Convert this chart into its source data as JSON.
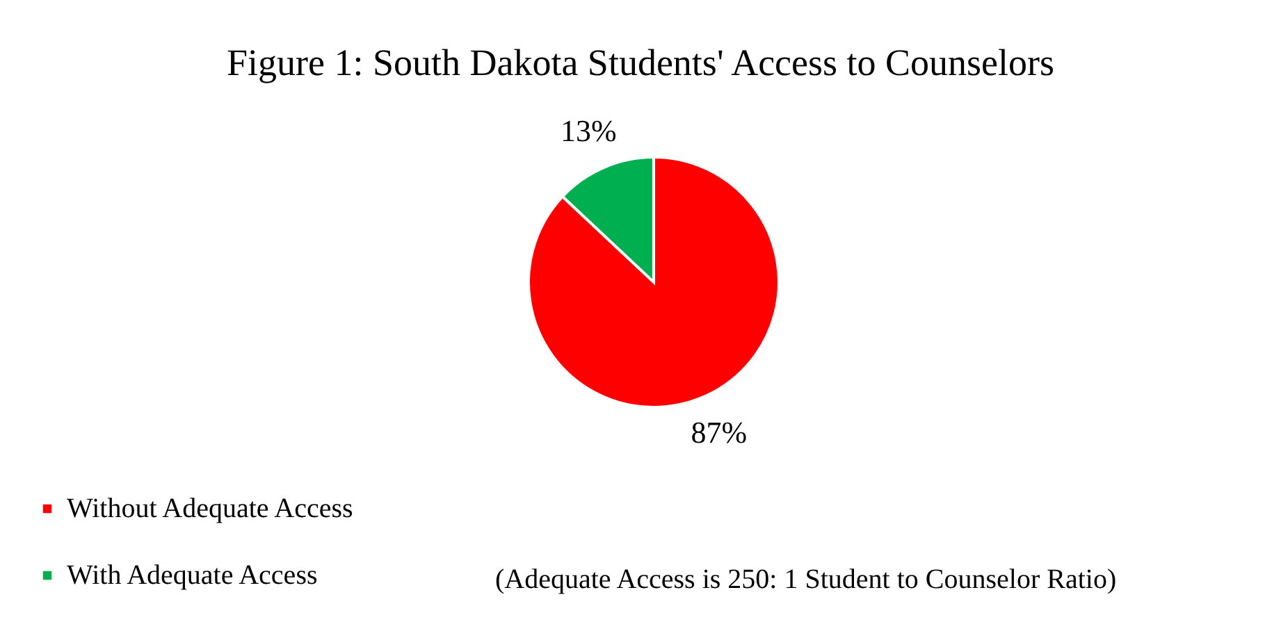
{
  "chart_data": {
    "type": "pie",
    "title": "Figure 1: South Dakota Students' Access to Counselors",
    "categories": [
      "Without Adequate Access",
      "With Adequate Access"
    ],
    "values": [
      87,
      13
    ],
    "colors": [
      "#ff0000",
      "#00b050"
    ],
    "value_labels": [
      "87%",
      "13%"
    ],
    "legend": "bottom left",
    "annotations": [
      "(Adequate Access is 250: 1 Student to Counselor Ratio)"
    ]
  }
}
